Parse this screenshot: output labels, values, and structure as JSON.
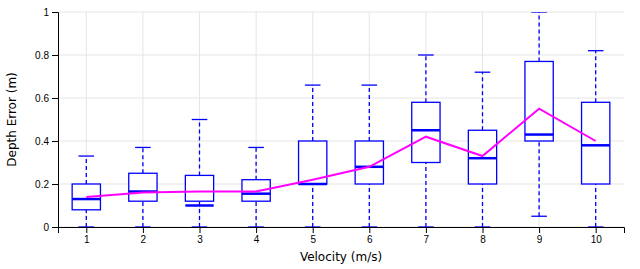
{
  "chart_data": {
    "type": "box",
    "x": [
      1,
      2,
      3,
      4,
      5,
      6,
      7,
      8,
      9,
      10
    ],
    "xlabel": "Velocity (m/s)",
    "ylabel": "Depth Error (m)",
    "xlim": [
      0.5,
      10.5
    ],
    "ylim": [
      0,
      1.0
    ],
    "xticks": [
      1,
      2,
      3,
      4,
      5,
      6,
      7,
      8,
      9,
      10
    ],
    "yticks": [
      0,
      0.2,
      0.4,
      0.6,
      0.8,
      1.0
    ],
    "grid": true,
    "series": [
      {
        "type": "box",
        "color": "#0000FF",
        "whisker_low": [
          0.0,
          0.0,
          0.0,
          0.0,
          0.0,
          0.0,
          0.0,
          0.0,
          0.05,
          0.0
        ],
        "q1": [
          0.08,
          0.12,
          0.12,
          0.12,
          0.2,
          0.2,
          0.3,
          0.2,
          0.4,
          0.2
        ],
        "median": [
          0.13,
          0.165,
          0.1,
          0.155,
          0.2,
          0.28,
          0.45,
          0.32,
          0.43,
          0.38
        ],
        "q3": [
          0.2,
          0.25,
          0.24,
          0.22,
          0.4,
          0.4,
          0.58,
          0.45,
          0.77,
          0.58
        ],
        "whisker_high": [
          0.33,
          0.37,
          0.5,
          0.37,
          0.66,
          0.66,
          0.8,
          0.72,
          1.0,
          0.82
        ]
      },
      {
        "type": "line",
        "color": "#FF00FF",
        "values": [
          0.14,
          0.16,
          0.165,
          0.165,
          0.22,
          0.28,
          0.42,
          0.33,
          0.55,
          0.4
        ]
      }
    ]
  }
}
